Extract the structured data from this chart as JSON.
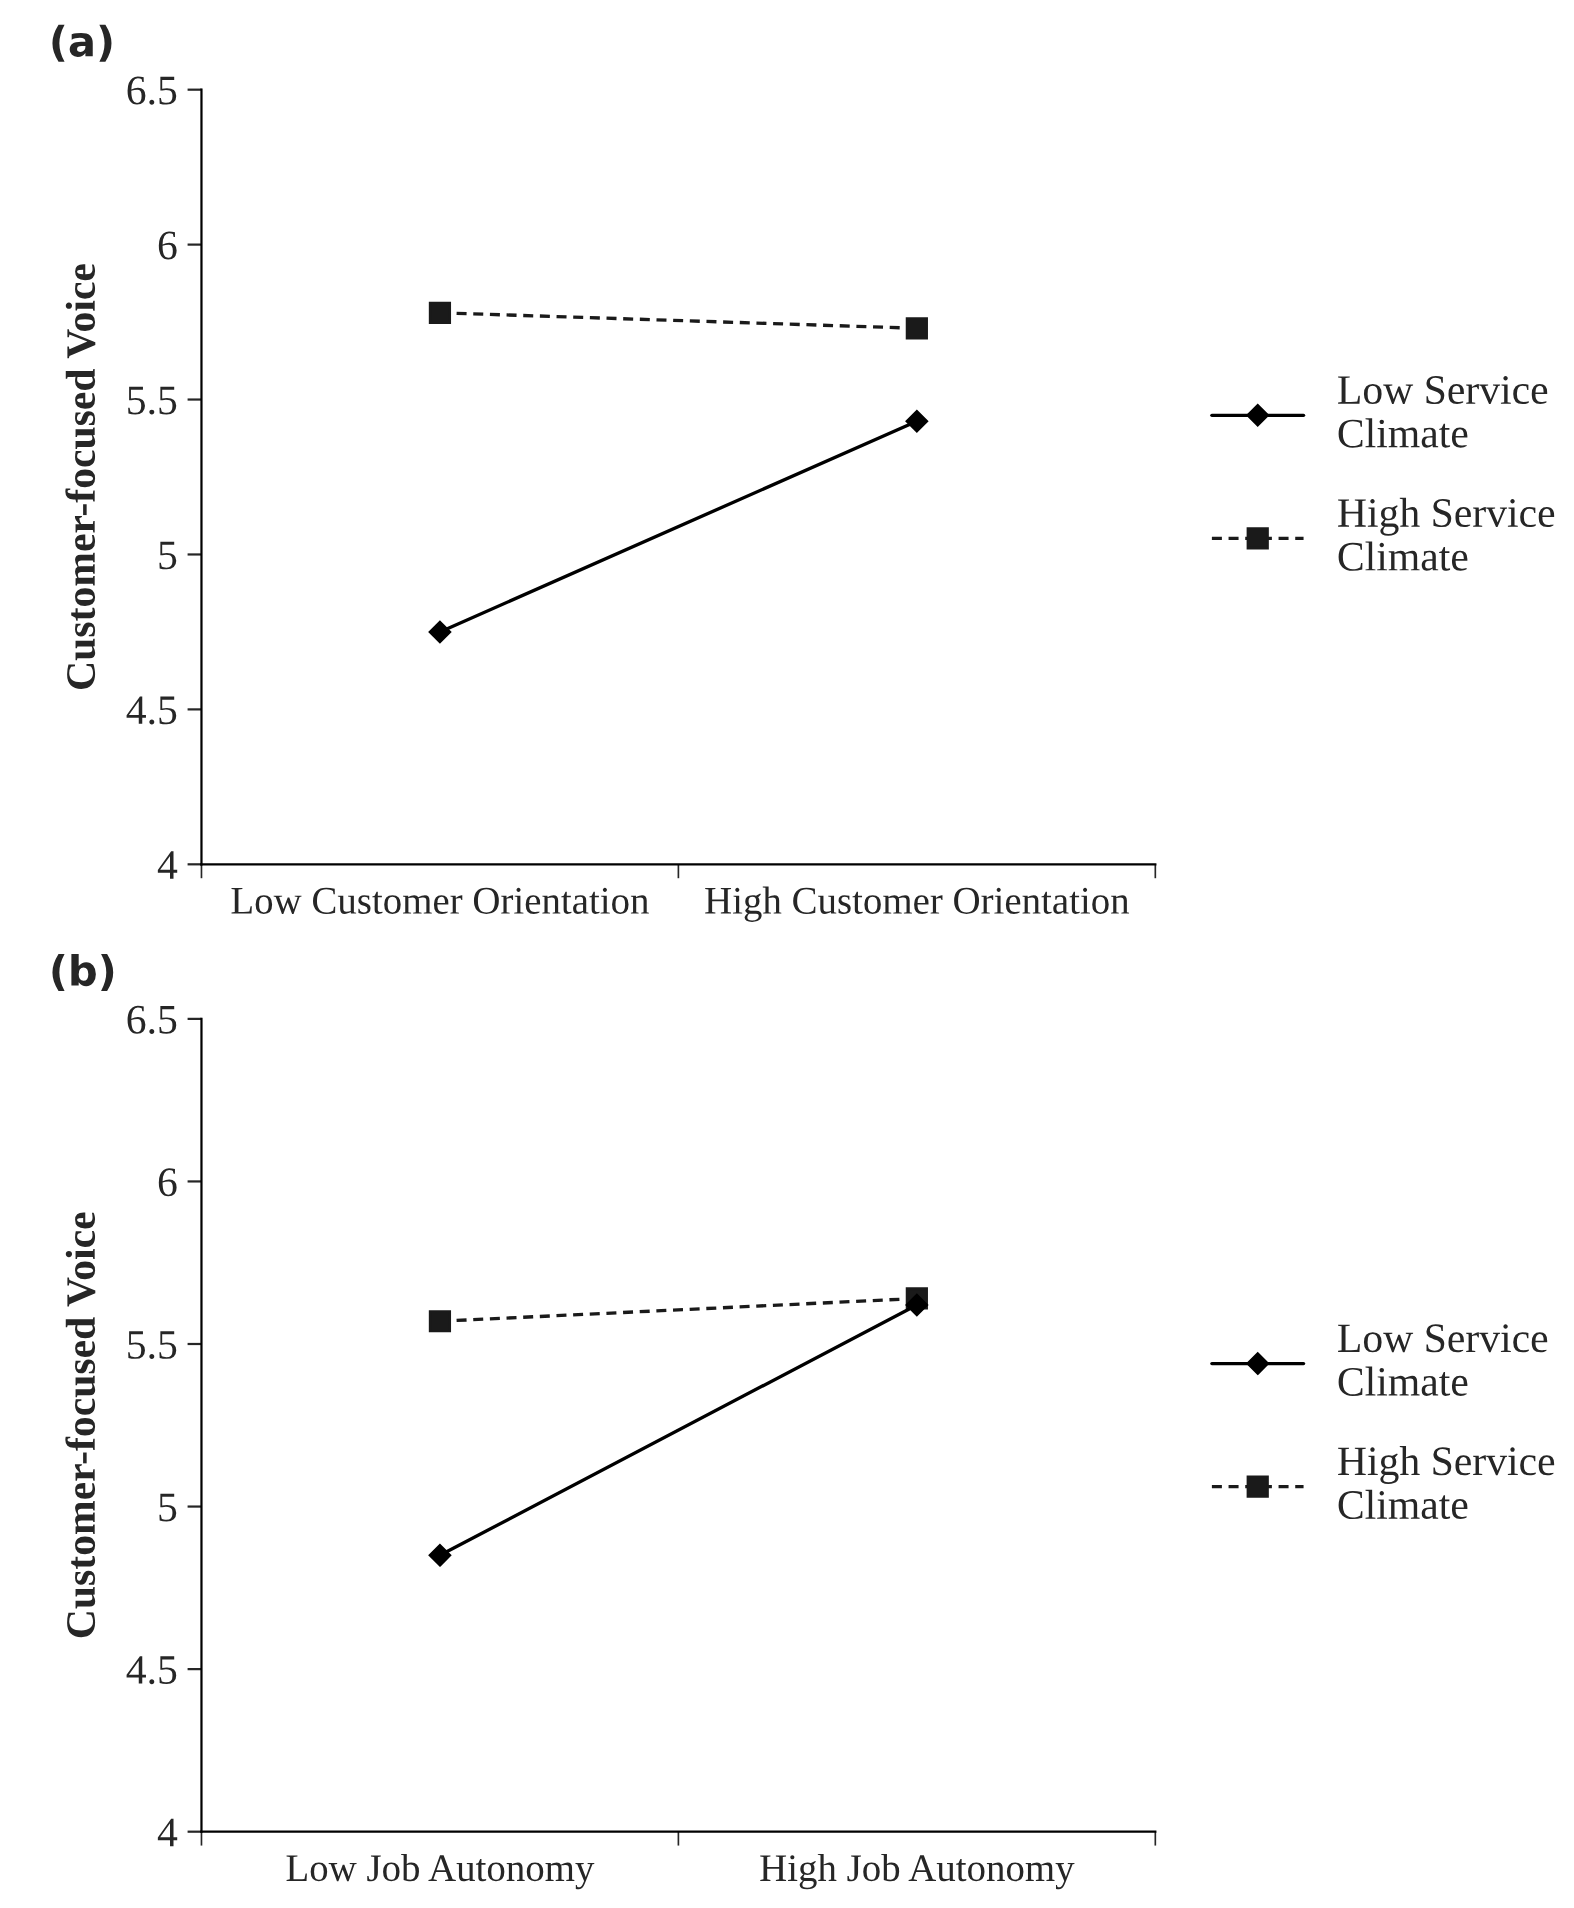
{
  "chart_data": [
    {
      "type": "line",
      "title": "(a)",
      "ylabel": "Customer-focused Voice",
      "categories": [
        "Low Customer Orientation",
        "High Customer Orientation"
      ],
      "ylim": [
        4,
        6.5
      ],
      "yticks": [
        4,
        4.5,
        5,
        5.5,
        6,
        6.5
      ],
      "grid": false,
      "legend": "right",
      "series": [
        {
          "name": "Low Service Climate",
          "color": "#000000",
          "marker": "diamond",
          "line_style": "solid",
          "values": [
            4.75,
            5.43
          ]
        },
        {
          "name": "High Service Climate",
          "color": "#1a1a1a",
          "marker": "square",
          "line_style": "dashed",
          "values": [
            5.78,
            5.73
          ]
        }
      ]
    },
    {
      "type": "line",
      "title": "(b)",
      "ylabel": "Customer-focused Voice",
      "categories": [
        "Low Job Autonomy",
        "High Job Autonomy"
      ],
      "ylim": [
        4,
        6.5
      ],
      "yticks": [
        4,
        4.5,
        5,
        5.5,
        6,
        6.5
      ],
      "grid": false,
      "legend": "right",
      "series": [
        {
          "name": "Low Service Climate",
          "color": "#000000",
          "marker": "diamond",
          "line_style": "solid",
          "values": [
            4.85,
            5.62
          ]
        },
        {
          "name": "High Service Climate",
          "color": "#1a1a1a",
          "marker": "square",
          "line_style": "dashed",
          "values": [
            5.57,
            5.64
          ]
        }
      ]
    }
  ]
}
